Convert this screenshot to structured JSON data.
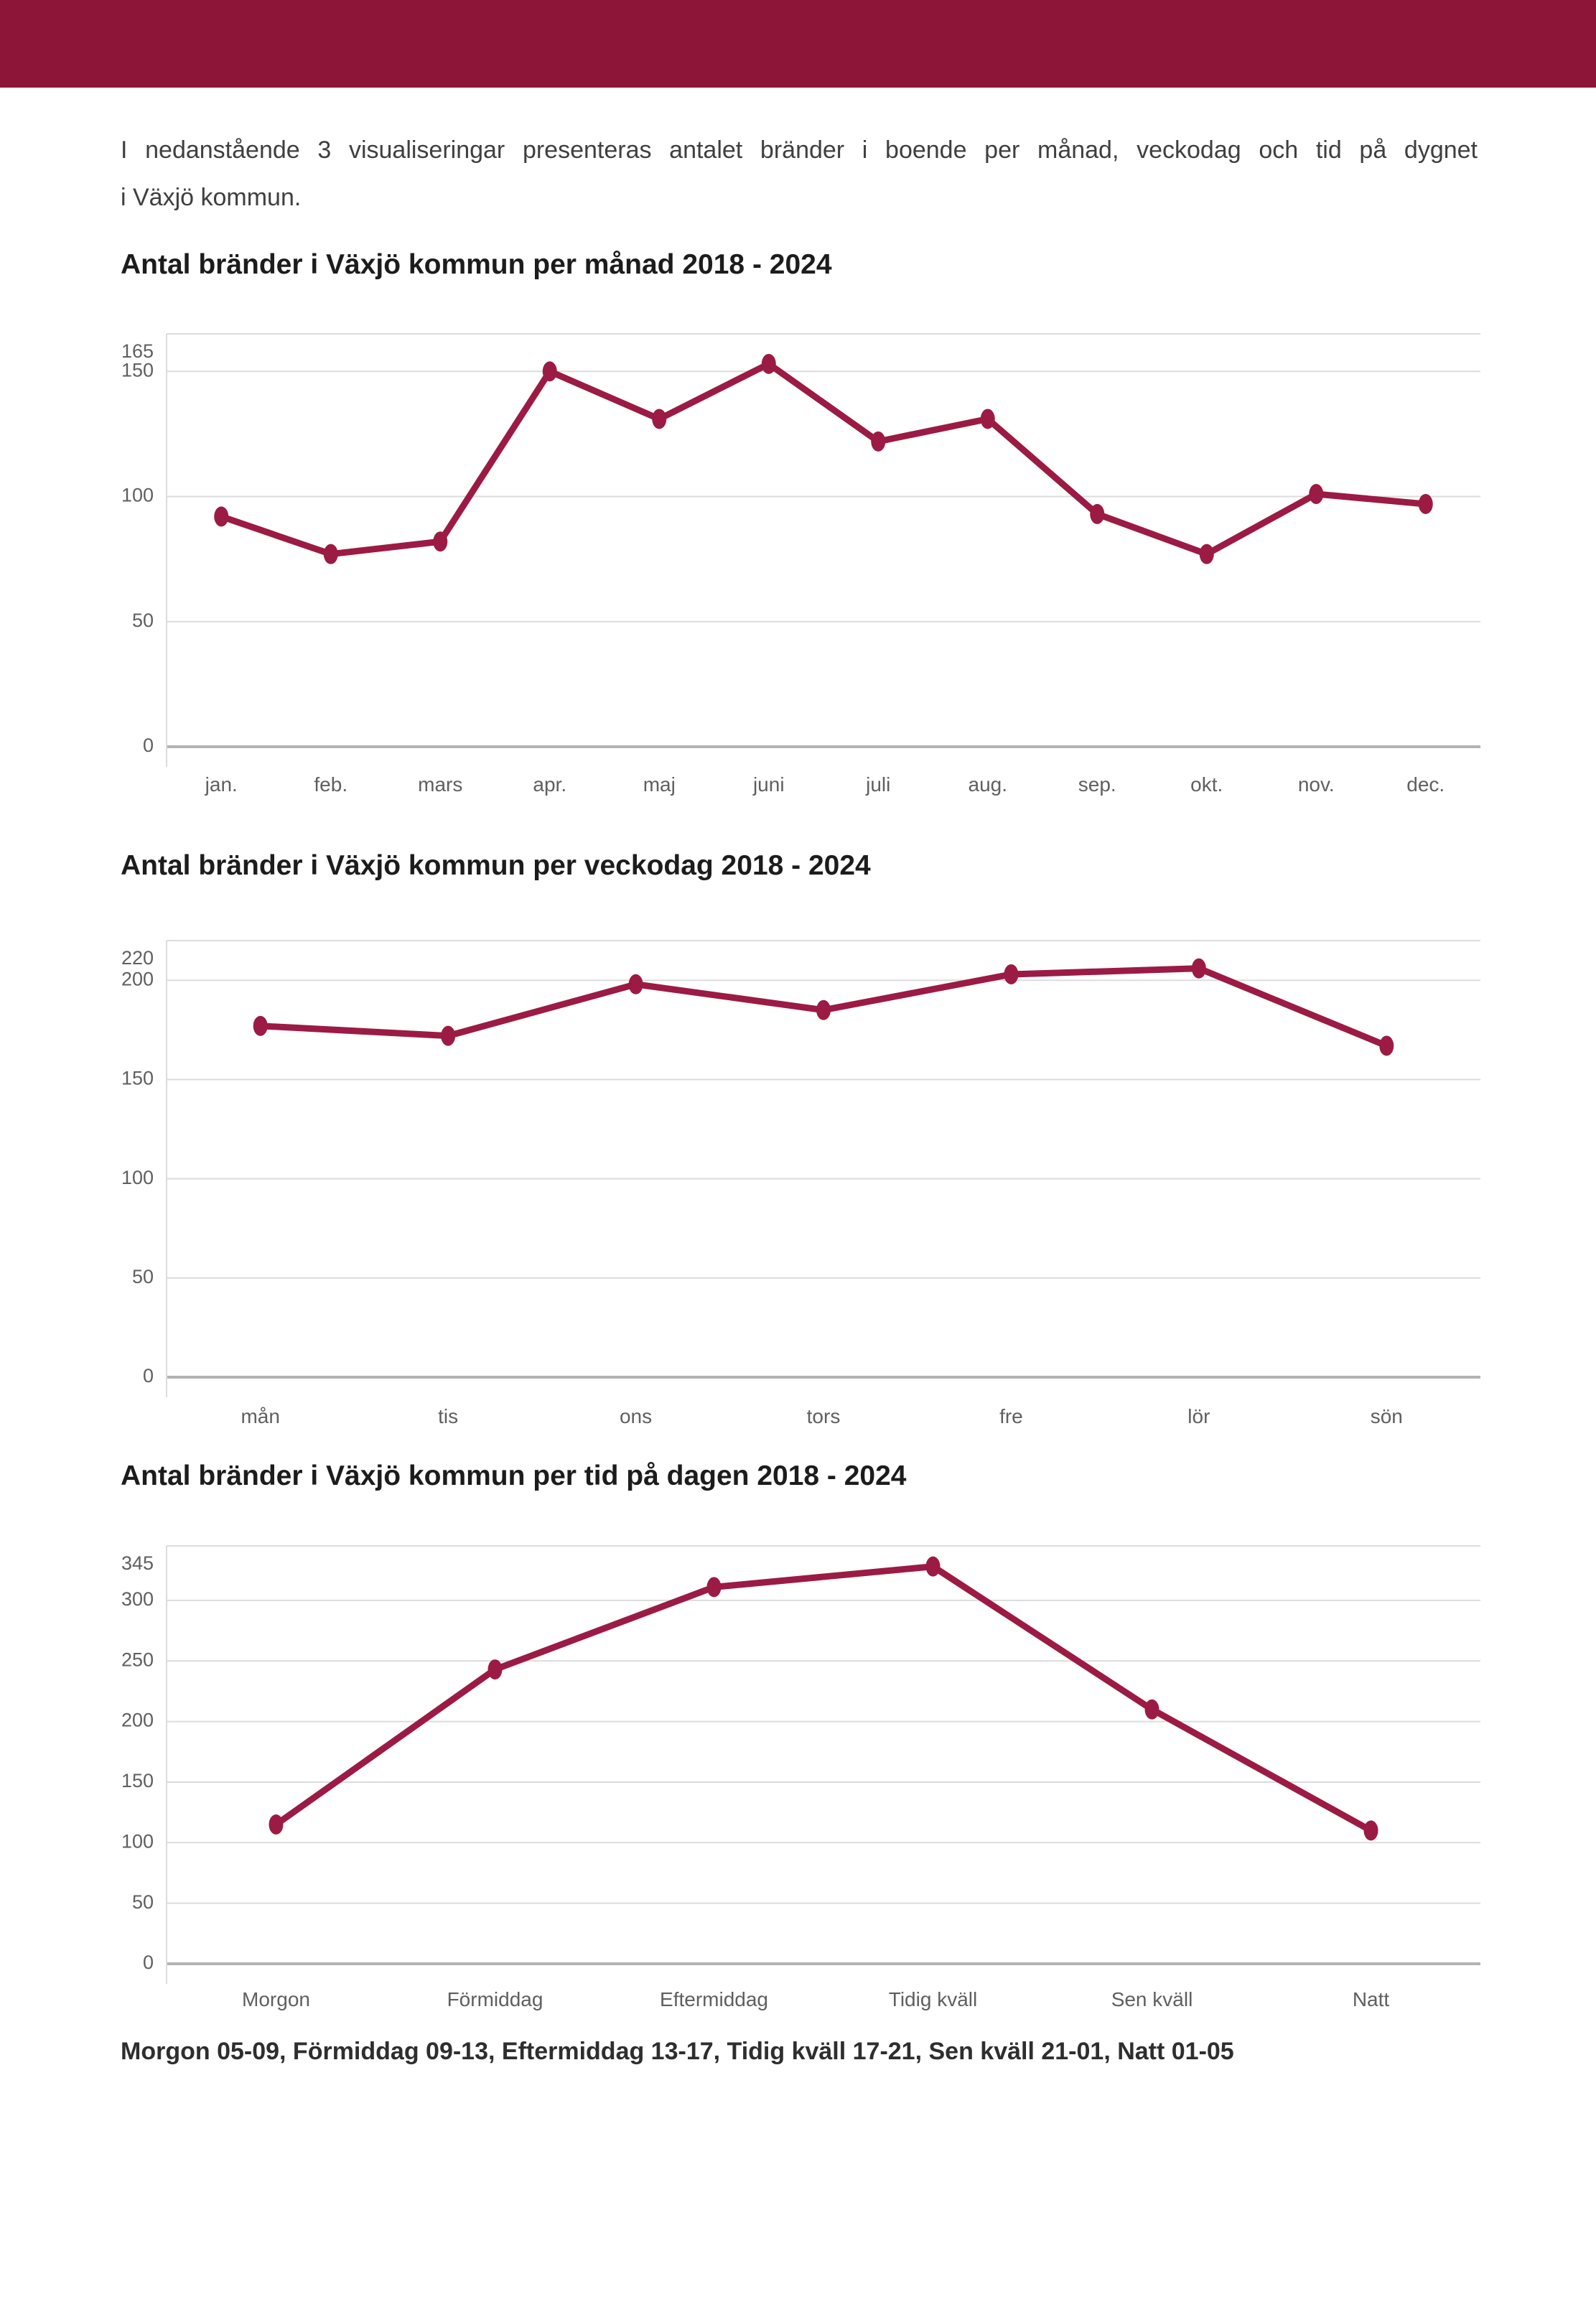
{
  "intro": {
    "line1": "I nedanstående 3 visualiseringar presenteras antalet bränder i boende per månad, veckodag och tid på dygnet",
    "line2": "i Växjö kommun."
  },
  "footer_note": "Morgon 05-09, Förmiddag 09-13, Eftermiddag 13-17, Tidig kväll 17-21, Sen kväll 21-01, Natt 01-05",
  "colors": {
    "header_bar": "#8C1538",
    "line": "#9B1B45",
    "grid": "#dcdcdc",
    "zero_axis": "#b3b3b3",
    "tick_text": "#5f5f5f"
  },
  "chart_data": [
    {
      "type": "line",
      "title": "Antal bränder i Växjö kommun per månad 2018 - 2024",
      "categories": [
        "jan.",
        "feb.",
        "mars",
        "apr.",
        "maj",
        "juni",
        "juli",
        "aug.",
        "sep.",
        "okt.",
        "nov.",
        "dec."
      ],
      "values": [
        92,
        77,
        82,
        150,
        131,
        153,
        122,
        131,
        93,
        77,
        101,
        97
      ],
      "y_ticks": [
        0,
        50,
        100,
        150,
        165
      ],
      "ylim": [
        0,
        165
      ],
      "xlabel": "",
      "ylabel": "",
      "grid": "horizontal",
      "legend": "none"
    },
    {
      "type": "line",
      "title": "Antal bränder i Växjö kommun per veckodag 2018 - 2024",
      "categories": [
        "mån",
        "tis",
        "ons",
        "tors",
        "fre",
        "lör",
        "sön"
      ],
      "values": [
        177,
        172,
        198,
        185,
        203,
        206,
        167
      ],
      "y_ticks": [
        0,
        50,
        100,
        150,
        200,
        220
      ],
      "ylim": [
        0,
        220
      ],
      "xlabel": "",
      "ylabel": "",
      "grid": "horizontal",
      "legend": "none"
    },
    {
      "type": "line",
      "title": "Antal bränder i Växjö kommun per tid på dagen 2018 - 2024",
      "categories": [
        "Morgon",
        "Förmiddag",
        "Eftermiddag",
        "Tidig kväll",
        "Sen kväll",
        "Natt"
      ],
      "values": [
        115,
        243,
        311,
        328,
        210,
        110
      ],
      "y_ticks": [
        0,
        50,
        100,
        150,
        200,
        250,
        300,
        345
      ],
      "ylim": [
        0,
        345
      ],
      "xlabel": "",
      "ylabel": "",
      "grid": "horizontal",
      "legend": "none"
    }
  ]
}
